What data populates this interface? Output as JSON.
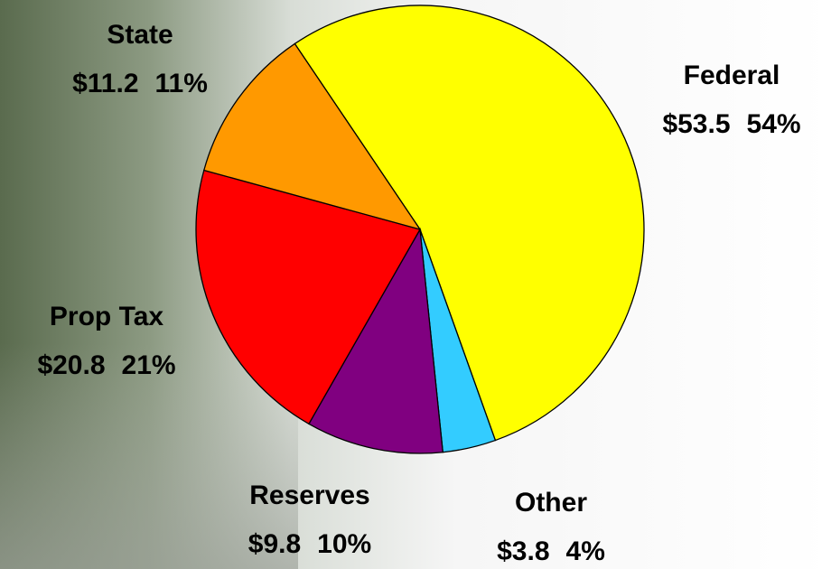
{
  "chart_data": {
    "type": "pie",
    "categories": [
      "Federal",
      "Other",
      "Reserves",
      "Prop Tax",
      "State"
    ],
    "values": [
      53.5,
      3.8,
      9.8,
      20.8,
      11.2
    ],
    "value_labels": [
      "$53.5",
      "$3.8",
      "$9.8",
      "$20.8",
      "$11.2"
    ],
    "percent_labels": [
      "54%",
      "4%",
      "10%",
      "21%",
      "11%"
    ],
    "colors": [
      "#ffff00",
      "#33ccff",
      "#800080",
      "#ff0000",
      "#ff9900"
    ]
  }
}
